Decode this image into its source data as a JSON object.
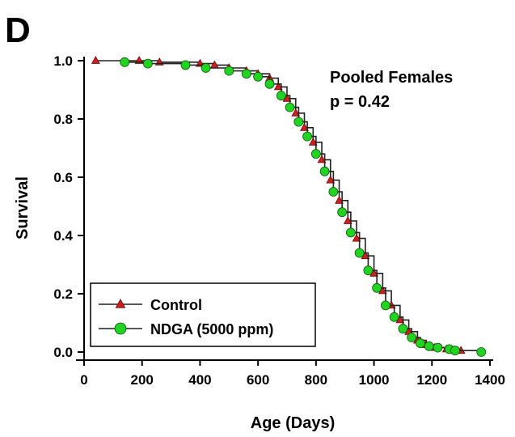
{
  "panel_label": "D",
  "annotation": {
    "line1": "Pooled Females",
    "line2": "p = 0.42"
  },
  "legend": {
    "items": [
      {
        "label": "Control",
        "color": "#cc1f1f",
        "marker": "triangle"
      },
      {
        "label": "NDGA (5000 ppm)",
        "color": "#22d422",
        "marker": "circle"
      }
    ]
  },
  "chart_data": {
    "type": "line",
    "xlabel": "Age (Days)",
    "ylabel": "Survival",
    "xlim": [
      0,
      1400
    ],
    "ylim": [
      0,
      1.0
    ],
    "x_ticks": [
      0,
      200,
      400,
      600,
      800,
      1000,
      1200,
      1400
    ],
    "y_ticks": [
      0.0,
      0.2,
      0.4,
      0.6,
      0.8,
      1.0
    ],
    "y_tick_labels": [
      "0.0",
      "0.2",
      "0.4",
      "0.6",
      "0.8",
      "1.0"
    ],
    "grid": false,
    "legend_placement": "bottom-left",
    "series": [
      {
        "name": "Control",
        "color": "#cc1f1f",
        "marker": "triangle",
        "x": [
          40,
          190,
          260,
          400,
          450,
          500,
          560,
          600,
          640,
          670,
          700,
          730,
          760,
          790,
          820,
          850,
          880,
          910,
          940,
          970,
          1000,
          1030,
          1060,
          1090,
          1120,
          1150,
          1180,
          1210,
          1250,
          1300
        ],
        "y": [
          1.0,
          1.0,
          0.995,
          0.99,
          0.985,
          0.975,
          0.965,
          0.955,
          0.94,
          0.91,
          0.87,
          0.82,
          0.77,
          0.72,
          0.66,
          0.59,
          0.52,
          0.45,
          0.39,
          0.33,
          0.27,
          0.21,
          0.16,
          0.11,
          0.07,
          0.04,
          0.025,
          0.015,
          0.01,
          0.005
        ]
      },
      {
        "name": "NDGA (5000 ppm)",
        "color": "#22d422",
        "marker": "circle",
        "x": [
          140,
          220,
          350,
          420,
          500,
          560,
          600,
          640,
          680,
          710,
          740,
          770,
          800,
          830,
          860,
          890,
          920,
          950,
          980,
          1010,
          1040,
          1070,
          1100,
          1130,
          1160,
          1190,
          1220,
          1260,
          1280,
          1370
        ],
        "y": [
          0.995,
          0.99,
          0.985,
          0.975,
          0.965,
          0.955,
          0.945,
          0.92,
          0.88,
          0.84,
          0.79,
          0.74,
          0.68,
          0.62,
          0.55,
          0.48,
          0.41,
          0.34,
          0.28,
          0.22,
          0.16,
          0.12,
          0.08,
          0.05,
          0.03,
          0.02,
          0.015,
          0.01,
          0.005,
          0.0
        ]
      }
    ]
  }
}
